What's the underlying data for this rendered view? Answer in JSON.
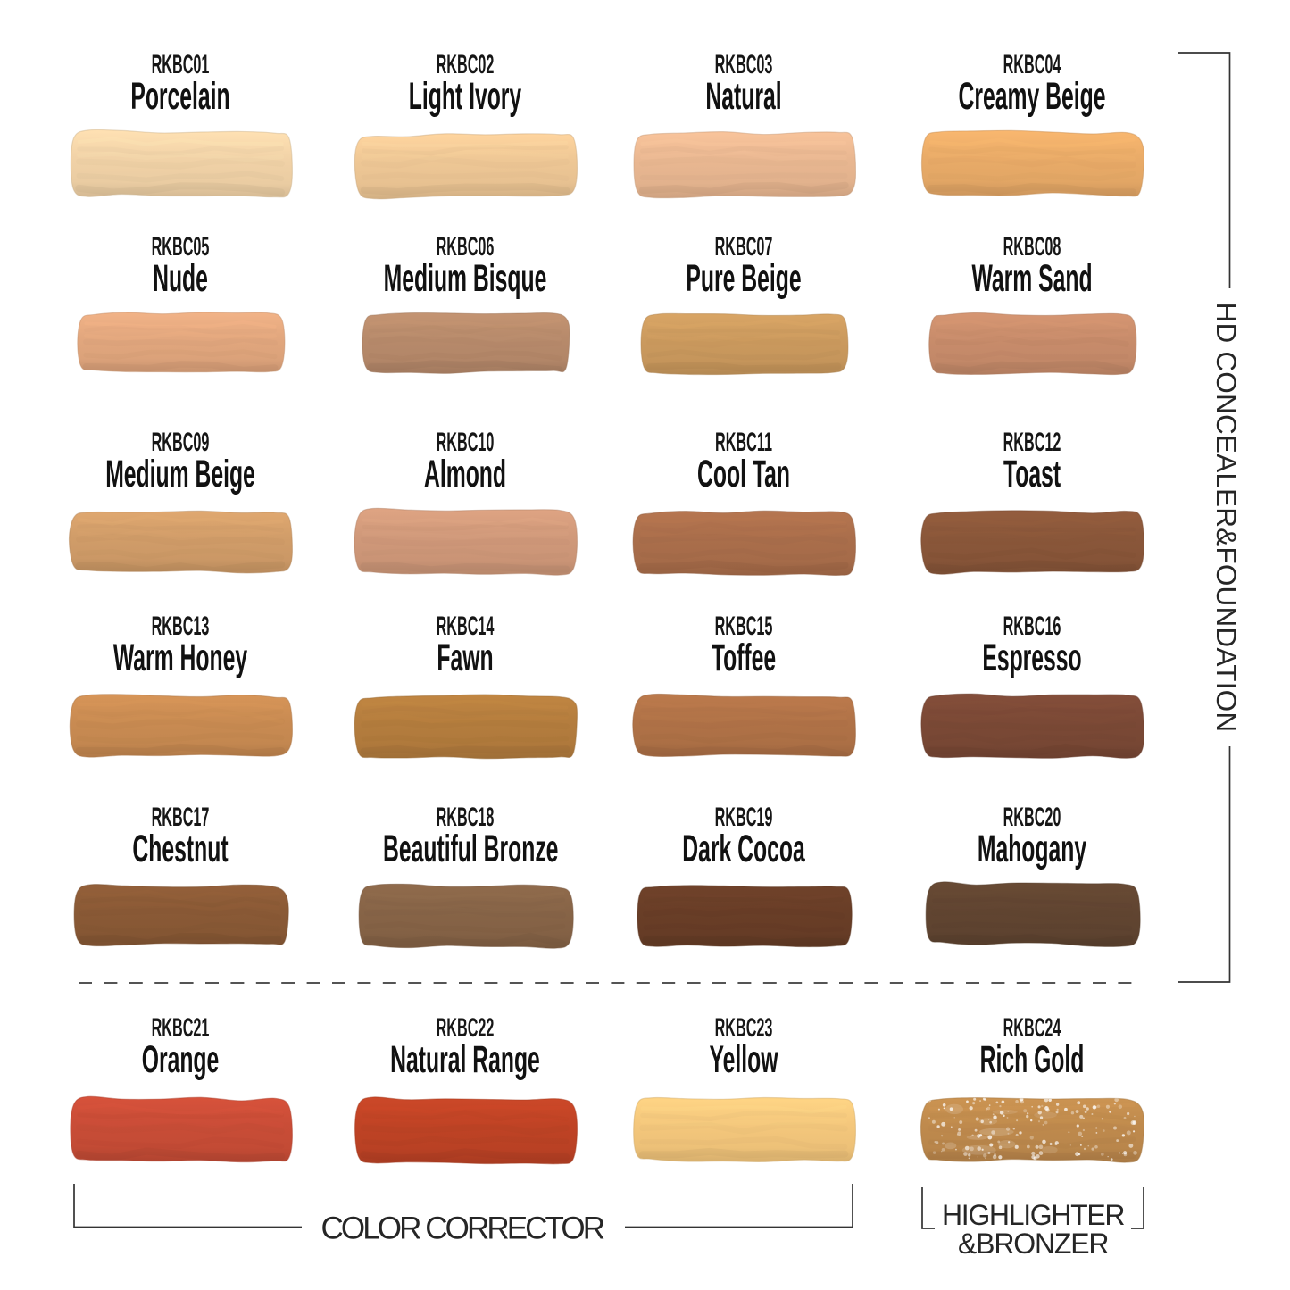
{
  "chart_data": {
    "type": "table",
    "title": "",
    "columns": [
      "code",
      "shade_name",
      "swatch_color",
      "group"
    ],
    "rows": [
      [
        "RKBC01",
        "Porcelain",
        "#f1d2a7",
        "HD CONCEALER&FOUNDATION"
      ],
      [
        "RKBC02",
        "Light Ivory",
        "#eec795",
        "HD CONCEALER&FOUNDATION"
      ],
      [
        "RKBC03",
        "Natural",
        "#e9b791",
        "HD CONCEALER&FOUNDATION"
      ],
      [
        "RKBC04",
        "Creamy Beige",
        "#e9ab68",
        "HD CONCEALER&FOUNDATION"
      ],
      [
        "RKBC05",
        "Nude",
        "#e2a77e",
        "HD CONCEALER&FOUNDATION"
      ],
      [
        "RKBC06",
        "Medium Bisque",
        "#b78a6b",
        "HD CONCEALER&FOUNDATION"
      ],
      [
        "RKBC07",
        "Pure Beige",
        "#cb9a5e",
        "HD CONCEALER&FOUNDATION"
      ],
      [
        "RKBC08",
        "Warm Sand",
        "#c88c6b",
        "HD CONCEALER&FOUNDATION"
      ],
      [
        "RKBC09",
        "Medium Beige",
        "#d19d69",
        "HD CONCEALER&FOUNDATION"
      ],
      [
        "RKBC10",
        "Almond",
        "#d0997a",
        "HD CONCEALER&FOUNDATION"
      ],
      [
        "RKBC11",
        "Cool Tan",
        "#aa6e4b",
        "HD CONCEALER&FOUNDATION"
      ],
      [
        "RKBC12",
        "Toast",
        "#8a573a",
        "HD CONCEALER&FOUNDATION"
      ],
      [
        "RKBC13",
        "Warm Honey",
        "#c98b52",
        "HD CONCEALER&FOUNDATION"
      ],
      [
        "RKBC14",
        "Fawn",
        "#b47d3e",
        "HD CONCEALER&FOUNDATION"
      ],
      [
        "RKBC15",
        "Toffee",
        "#b07247",
        "HD CONCEALER&FOUNDATION"
      ],
      [
        "RKBC16",
        "Espresso",
        "#7b4936",
        "HD CONCEALER&FOUNDATION"
      ],
      [
        "RKBC17",
        "Chestnut",
        "#8a5a36",
        "HD CONCEALER&FOUNDATION"
      ],
      [
        "RKBC18",
        "Beautiful Bronze",
        "#876447",
        "HD CONCEALER&FOUNDATION"
      ],
      [
        "RKBC19",
        "Dark Cocoa",
        "#693e27",
        "HD CONCEALER&FOUNDATION"
      ],
      [
        "RKBC20",
        "Mahogany",
        "#614531",
        "HD CONCEALER&FOUNDATION"
      ],
      [
        "RKBC21",
        "Orange",
        "#c94d37",
        "COLOR CORRECTOR"
      ],
      [
        "RKBC22",
        "Natural Range",
        "#bf4325",
        "COLOR CORRECTOR"
      ],
      [
        "RKBC23",
        "Yellow",
        "#f4c77c",
        "COLOR CORRECTOR"
      ],
      [
        "RKBC24",
        "Rich Gold",
        "#bf8a4d",
        "HIGHLIGHTER &BRONZER"
      ]
    ]
  },
  "swatches": [
    {
      "code": "RKBC01",
      "name": "Porcelain",
      "color": "#f1d2a7",
      "shimmer": false
    },
    {
      "code": "RKBC02",
      "name": "Light Ivory",
      "color": "#eec795",
      "shimmer": false
    },
    {
      "code": "RKBC03",
      "name": "Natural",
      "color": "#e9b791",
      "shimmer": false
    },
    {
      "code": "RKBC04",
      "name": "Creamy Beige",
      "color": "#e9ab68",
      "shimmer": false
    },
    {
      "code": "RKBC05",
      "name": "Nude",
      "color": "#e2a77e",
      "shimmer": false
    },
    {
      "code": "RKBC06",
      "name": "Medium Bisque",
      "color": "#b78a6b",
      "shimmer": false
    },
    {
      "code": "RKBC07",
      "name": "Pure Beige",
      "color": "#cb9a5e",
      "shimmer": false
    },
    {
      "code": "RKBC08",
      "name": "Warm Sand",
      "color": "#c88c6b",
      "shimmer": false
    },
    {
      "code": "RKBC09",
      "name": "Medium Beige",
      "color": "#d19d69",
      "shimmer": false
    },
    {
      "code": "RKBC10",
      "name": "Almond",
      "color": "#d0997a",
      "shimmer": false
    },
    {
      "code": "RKBC11",
      "name": "Cool Tan",
      "color": "#aa6e4b",
      "shimmer": false
    },
    {
      "code": "RKBC12",
      "name": "Toast",
      "color": "#8a573a",
      "shimmer": false
    },
    {
      "code": "RKBC13",
      "name": "Warm Honey",
      "color": "#c98b52",
      "shimmer": false
    },
    {
      "code": "RKBC14",
      "name": "Fawn",
      "color": "#b47d3e",
      "shimmer": false
    },
    {
      "code": "RKBC15",
      "name": "Toffee",
      "color": "#b07247",
      "shimmer": false
    },
    {
      "code": "RKBC16",
      "name": "Espresso",
      "color": "#7b4936",
      "shimmer": false
    },
    {
      "code": "RKBC17",
      "name": "Chestnut",
      "color": "#8a5a36",
      "shimmer": false
    },
    {
      "code": "RKBC18",
      "name": "Beautiful Bronze",
      "color": "#876447",
      "shimmer": false
    },
    {
      "code": "RKBC19",
      "name": "Dark Cocoa",
      "color": "#693e27",
      "shimmer": false
    },
    {
      "code": "RKBC20",
      "name": "Mahogany",
      "color": "#614531",
      "shimmer": false
    },
    {
      "code": "RKBC21",
      "name": "Orange",
      "color": "#c94d37",
      "shimmer": false
    },
    {
      "code": "RKBC22",
      "name": "Natural Range",
      "color": "#bf4325",
      "shimmer": false
    },
    {
      "code": "RKBC23",
      "name": "Yellow",
      "color": "#f4c77c",
      "shimmer": false
    },
    {
      "code": "RKBC24",
      "name": "Rich Gold",
      "color": "#bf8a4d",
      "shimmer": true
    }
  ],
  "groups": {
    "side_label": "HD CONCEALER&FOUNDATION",
    "bottom_left_label": "COLOR CORRECTOR",
    "bottom_right_label_line1": "HIGHLIGHTER",
    "bottom_right_label_line2": "&BRONZER"
  },
  "colors": {
    "background": "#ffffff",
    "text": "#111111",
    "line": "#333333"
  }
}
